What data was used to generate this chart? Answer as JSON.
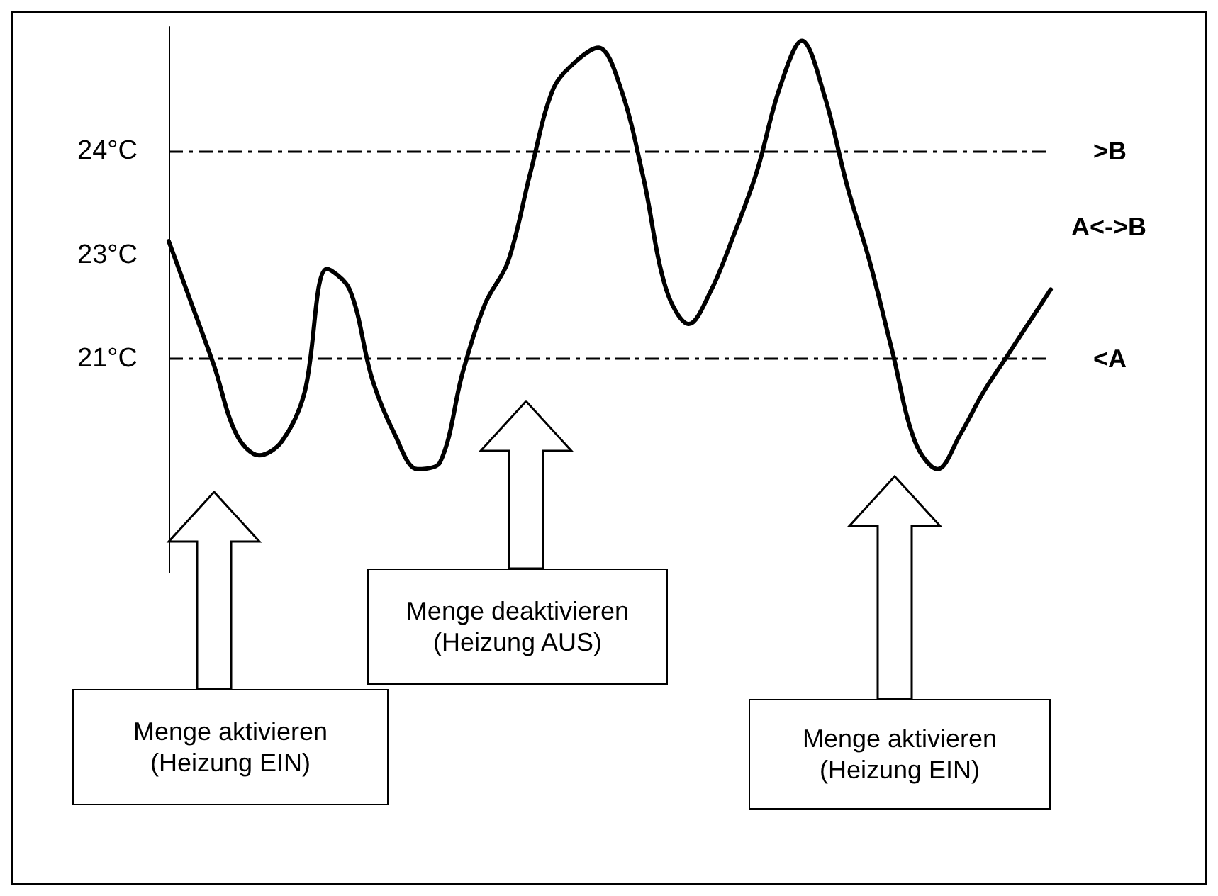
{
  "chart_data": {
    "type": "line",
    "categories": [
      null,
      null,
      null,
      null,
      null,
      null,
      null,
      null,
      null,
      null,
      null,
      null,
      null,
      null,
      null,
      null,
      null,
      null,
      null,
      null,
      null,
      null,
      null,
      null,
      null,
      null,
      null,
      null,
      null,
      null,
      null,
      null,
      null,
      null,
      null,
      null,
      null,
      null,
      null,
      null
    ],
    "series": [
      {
        "color": "#000000",
        "values": [
          22.7,
          21.8,
          20.9,
          19.9,
          19.6,
          19.8,
          20.5,
          22.3,
          22.0,
          20.7,
          19.9,
          19.4,
          19.5,
          20.8,
          21.8,
          22.4,
          23.7,
          24.9,
          25.3,
          25.5,
          24.9,
          23.6,
          22.0,
          21.5,
          22.0,
          22.8,
          23.7,
          24.9,
          25.6,
          24.8,
          23.5,
          22.4,
          21.1,
          19.8,
          19.4,
          19.9,
          20.5,
          21.0,
          21.5,
          22.0
        ]
      }
    ],
    "ylim": [
      17.9,
      25.8
    ],
    "yticks": [
      {
        "value": 24,
        "label": "24°C"
      },
      {
        "value": 22.5,
        "label": "23°C"
      },
      {
        "value": 21,
        "label": "21°C"
      }
    ],
    "ref_lines": [
      {
        "axis": "y",
        "value": 24,
        "label": ">B",
        "line_style": "dashed",
        "color": "#000000"
      },
      {
        "axis": "y",
        "value": 21,
        "label": "<A",
        "line_style": "dashed",
        "color": "#000000"
      }
    ],
    "annotations": [
      "A<->B",
      "Menge aktivieren\n(Heizung EIN)",
      "Menge deaktivieren\n(Heizung AUS)",
      "Menge aktivieren\n(Heizung EIN)"
    ],
    "grid": false
  }
}
